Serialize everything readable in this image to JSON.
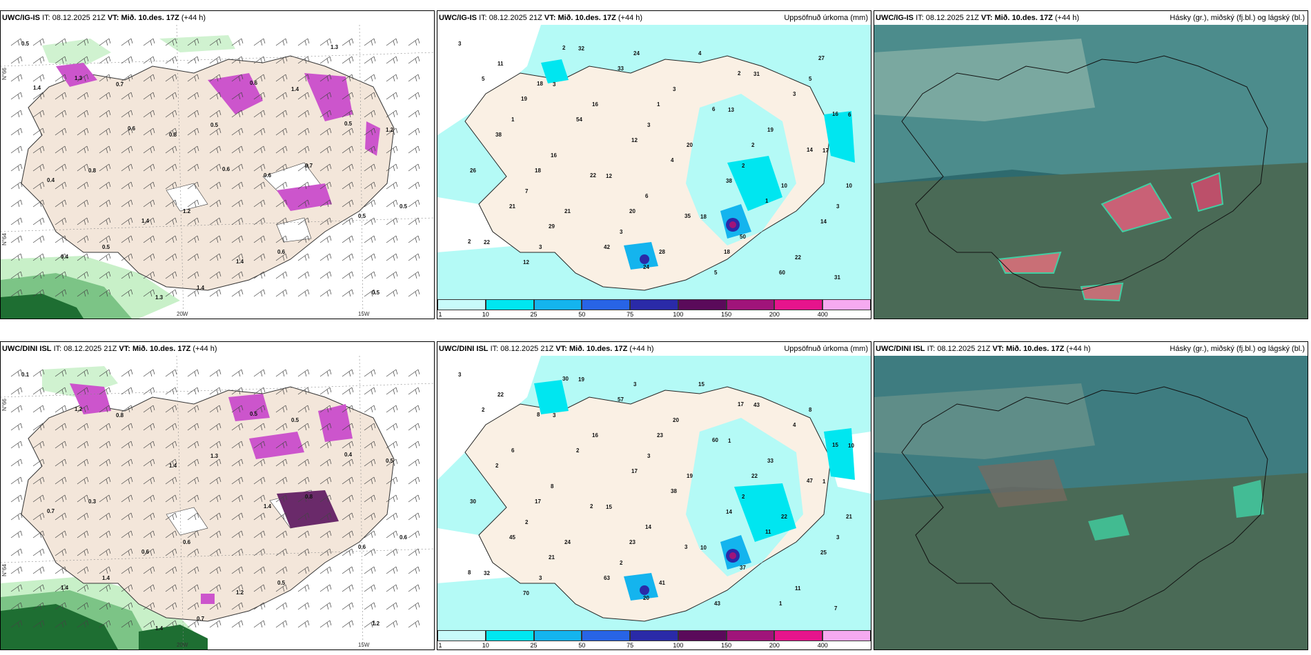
{
  "rows": [
    {
      "model": "UWC/IG-IS",
      "init_label": "IT:",
      "init": "08.12.2025 21Z",
      "valid_label": "VT:",
      "valid": "Mið. 10.des. 17Z",
      "lead": "(+44 h)",
      "wind_labels": [
        "0.5",
        "0.7",
        "0.5",
        "0.7",
        "0.5",
        "0.5",
        "1.4",
        "1.4",
        "1.2",
        "0.8",
        "1.2",
        "0.6",
        "0.5",
        "1.3",
        "0.8",
        "0.6",
        "0.5",
        "0.4",
        "1.3",
        "0.6",
        "0.5",
        "0.4",
        "1.4",
        "1.4",
        "1.3",
        "1.4",
        "0.6",
        "0.6"
      ],
      "precip_labels": [
        "3",
        "3",
        "3",
        "2",
        "3",
        "3",
        "24",
        "13",
        "17",
        "7",
        "3",
        "5",
        "5",
        "1",
        "12",
        "18",
        "22",
        "11",
        "16",
        "20",
        "10",
        "22",
        "32",
        "3",
        "19",
        "26",
        "21",
        "28",
        "31",
        "6",
        "16",
        "6",
        "50",
        "31",
        "18",
        "12",
        "38",
        "14",
        "12",
        "33",
        "6",
        "14",
        "21",
        "42",
        "4",
        "3",
        "38",
        "22",
        "35",
        "60",
        "5",
        "54",
        "4",
        "1",
        "2",
        "2",
        "1",
        "2",
        "10",
        "29",
        "24",
        "2",
        "16",
        "18",
        "20",
        "18",
        "27",
        "19"
      ],
      "axis_labels": [
        "20W",
        "15W",
        "N°66",
        "N°64"
      ]
    },
    {
      "model": "UWC/DINI ISL",
      "init_label": "IT:",
      "init": "08.12.2025 21Z",
      "valid_label": "VT:",
      "valid": "Mið. 10.des. 17Z",
      "lead": "(+44 h)",
      "wind_labels": [
        "0.1",
        "0.8",
        "1.3",
        "0.8",
        "0.6",
        "1.4",
        "0.7",
        "0.5",
        "0.5",
        "0.3",
        "0.6",
        "0.5",
        "1.2",
        "1.2",
        "1.4",
        "1.4",
        "0.6",
        "1.4",
        "1.4",
        "0.5",
        "0.4",
        "0.7",
        "0.6",
        "1.2"
      ],
      "precip_labels": [
        "3",
        "3",
        "3",
        "2",
        "3",
        "3",
        "3",
        "1",
        "1",
        "2",
        "2",
        "43",
        "8",
        "6",
        "15",
        "10",
        "11",
        "22",
        "16",
        "19",
        "22",
        "32",
        "19",
        "20",
        "33",
        "30",
        "24",
        "41",
        "43",
        "10",
        "8",
        "14",
        "37",
        "7",
        "8",
        "17",
        "14",
        "25",
        "70",
        "57",
        "60",
        "47",
        "45",
        "63",
        "15",
        "4",
        "2",
        "2",
        "3",
        "1",
        "2",
        "2",
        "38",
        "11",
        "8",
        "30",
        "23",
        "22",
        "21",
        "21",
        "20",
        "17",
        "15",
        "17",
        "23"
      ],
      "axis_labels": [
        "20W",
        "15W",
        "N°66",
        "N°64"
      ]
    }
  ],
  "panels": {
    "precip_title": "Uppsöfnuð úrkoma (mm)",
    "cloud_title": "Hásky (gr.), miðský (fj.bl.) og lágský (bl.)"
  },
  "colorbar": {
    "ticks": [
      "1",
      "10",
      "25",
      "50",
      "75",
      "100",
      "150",
      "200",
      "400"
    ],
    "colors": [
      "#c8fafa",
      "#00e6f0",
      "#14b4ee",
      "#2864e6",
      "#2a2aa8",
      "#5a0a5a",
      "#a0147a",
      "#e6148c",
      "#f5aaf0"
    ]
  },
  "map_colors": {
    "land": "#f3e6da",
    "sea": "#ffffff",
    "green_light": "#c8f0c8",
    "green_dark": "#1e6e32",
    "magenta": "#cc55cc",
    "precip_bg": "#b4faf6",
    "cloud_bg": "#2e6a6e"
  }
}
